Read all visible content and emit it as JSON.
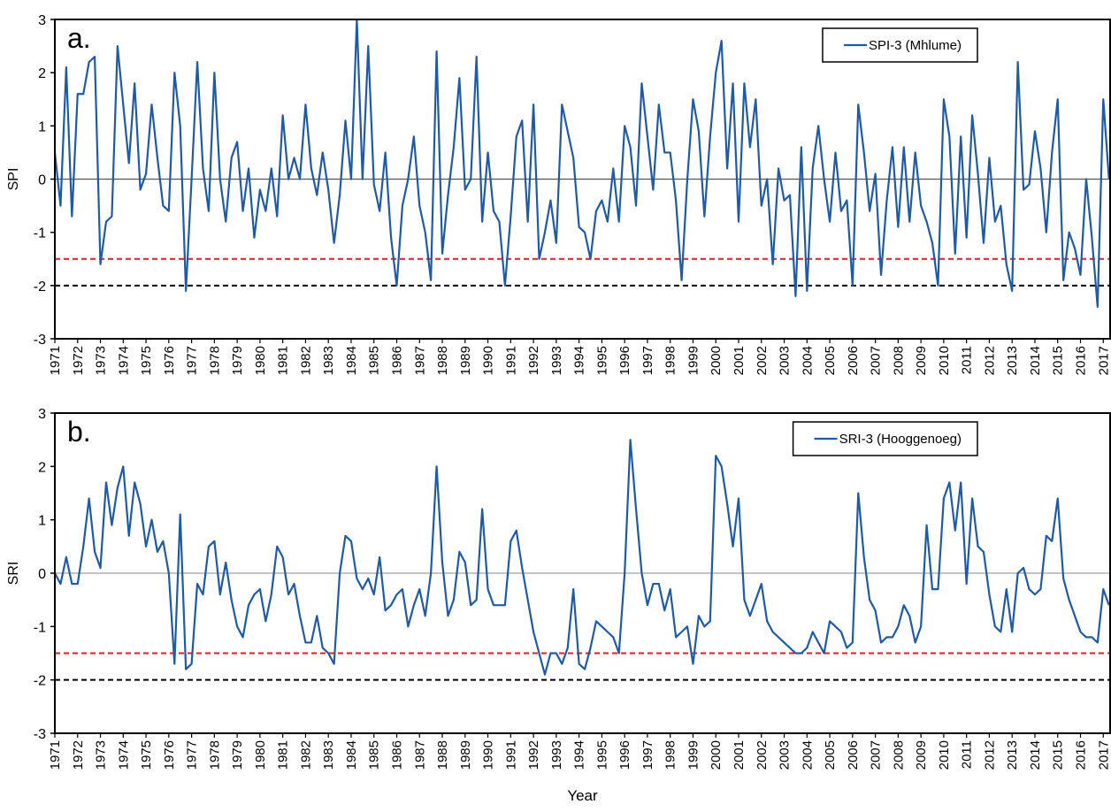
{
  "chart_data": [
    {
      "type": "line",
      "panel_label": "a.",
      "y_label": "SPI",
      "legend": "top-right",
      "grid": false,
      "xlim": [
        1971,
        2017.3
      ],
      "ylim": [
        -3,
        3
      ],
      "yticks": [
        -3,
        -2,
        -1,
        0,
        1,
        2,
        3
      ],
      "xticks": [
        1971,
        1972,
        1973,
        1974,
        1975,
        1976,
        1977,
        1978,
        1979,
        1980,
        1981,
        1982,
        1983,
        1984,
        1985,
        1986,
        1987,
        1988,
        1989,
        1990,
        1991,
        1992,
        1993,
        1994,
        1995,
        1996,
        1997,
        1998,
        1999,
        2000,
        2001,
        2002,
        2003,
        2004,
        2005,
        2006,
        2007,
        2008,
        2009,
        2010,
        2011,
        2012,
        2013,
        2014,
        2015,
        2016,
        2017
      ],
      "reference_lines": [
        {
          "value": 0,
          "color": "#555555",
          "dashed": false
        },
        {
          "value": -1.5,
          "color": "#e02020",
          "dashed": true
        },
        {
          "value": -2,
          "color": "#000000",
          "dashed": true
        }
      ],
      "x": [
        1971,
        1971.25,
        1971.5,
        1971.75,
        1972,
        1972.25,
        1972.5,
        1972.75,
        1973,
        1973.25,
        1973.5,
        1973.75,
        1974,
        1974.25,
        1974.5,
        1974.75,
        1975,
        1975.25,
        1975.5,
        1975.75,
        1976,
        1976.25,
        1976.5,
        1976.75,
        1977,
        1977.25,
        1977.5,
        1977.75,
        1978,
        1978.25,
        1978.5,
        1978.75,
        1979,
        1979.25,
        1979.5,
        1979.75,
        1980,
        1980.25,
        1980.5,
        1980.75,
        1981,
        1981.25,
        1981.5,
        1981.75,
        1982,
        1982.25,
        1982.5,
        1982.75,
        1983,
        1983.25,
        1983.5,
        1983.75,
        1984,
        1984.25,
        1984.5,
        1984.75,
        1985,
        1985.25,
        1985.5,
        1985.75,
        1986,
        1986.25,
        1986.5,
        1986.75,
        1987,
        1987.25,
        1987.5,
        1987.75,
        1988,
        1988.25,
        1988.5,
        1988.75,
        1989,
        1989.25,
        1989.5,
        1989.75,
        1990,
        1990.25,
        1990.5,
        1990.75,
        1991,
        1991.25,
        1991.5,
        1991.75,
        1992,
        1992.25,
        1992.5,
        1992.75,
        1993,
        1993.25,
        1993.5,
        1993.75,
        1994,
        1994.25,
        1994.5,
        1994.75,
        1995,
        1995.25,
        1995.5,
        1995.75,
        1996,
        1996.25,
        1996.5,
        1996.75,
        1997,
        1997.25,
        1997.5,
        1997.75,
        1998,
        1998.25,
        1998.5,
        1998.75,
        1999,
        1999.25,
        1999.5,
        1999.75,
        2000,
        2000.25,
        2000.5,
        2000.75,
        2001,
        2001.25,
        2001.5,
        2001.75,
        2002,
        2002.25,
        2002.5,
        2002.75,
        2003,
        2003.25,
        2003.5,
        2003.75,
        2004,
        2004.25,
        2004.5,
        2004.75,
        2005,
        2005.25,
        2005.5,
        2005.75,
        2006,
        2006.25,
        2006.5,
        2006.75,
        2007,
        2007.25,
        2007.5,
        2007.75,
        2008,
        2008.25,
        2008.5,
        2008.75,
        2009,
        2009.25,
        2009.5,
        2009.75,
        2010,
        2010.25,
        2010.5,
        2010.75,
        2011,
        2011.25,
        2011.5,
        2011.75,
        2012,
        2012.25,
        2012.5,
        2012.75,
        2013,
        2013.25,
        2013.5,
        2013.75,
        2014,
        2014.25,
        2014.5,
        2014.75,
        2015,
        2015.25,
        2015.5,
        2015.75,
        2016,
        2016.25,
        2016.5,
        2016.75,
        2017,
        2017.25
      ],
      "series": [
        {
          "name": "SPI-3 (Mhlume)",
          "color": "#1f5aa6",
          "values": [
            0.5,
            -0.5,
            2.1,
            -0.7,
            1.6,
            1.6,
            2.2,
            2.3,
            -1.6,
            -0.8,
            -0.7,
            2.5,
            1.4,
            0.3,
            1.8,
            -0.2,
            0.1,
            1.4,
            0.4,
            -0.5,
            -0.6,
            2.0,
            1.0,
            -2.1,
            0.0,
            2.2,
            0.2,
            -0.6,
            2.0,
            0.0,
            -0.8,
            0.4,
            0.7,
            -0.6,
            0.2,
            -1.1,
            -0.2,
            -0.6,
            0.2,
            -0.7,
            1.2,
            0.0,
            0.4,
            0.0,
            1.4,
            0.2,
            -0.3,
            0.5,
            -0.2,
            -1.2,
            -0.3,
            1.1,
            0.0,
            3.0,
            0.0,
            2.5,
            -0.1,
            -0.6,
            0.5,
            -1.1,
            -2.0,
            -0.5,
            0.0,
            0.8,
            -0.5,
            -1.0,
            -1.9,
            2.4,
            -1.4,
            -0.3,
            0.6,
            1.9,
            -0.2,
            0.0,
            2.3,
            -0.8,
            0.5,
            -0.6,
            -0.8,
            -2.0,
            -0.7,
            0.8,
            1.1,
            -0.8,
            1.4,
            -1.5,
            -1.0,
            -0.4,
            -1.2,
            1.4,
            0.9,
            0.4,
            -0.9,
            -1.0,
            -1.5,
            -0.6,
            -0.4,
            -0.8,
            0.2,
            -0.8,
            1.0,
            0.6,
            -0.5,
            1.8,
            0.8,
            -0.2,
            1.4,
            0.5,
            0.5,
            -0.4,
            -1.9,
            0.0,
            1.5,
            0.9,
            -0.7,
            0.8,
            2.0,
            2.6,
            0.2,
            1.8,
            -0.8,
            1.8,
            0.6,
            1.5,
            -0.5,
            0.0,
            -1.6,
            0.2,
            -0.4,
            -0.3,
            -2.2,
            0.6,
            -2.1,
            0.2,
            1.0,
            0.0,
            -0.8,
            0.5,
            -0.6,
            -0.4,
            -2.0,
            1.4,
            0.5,
            -0.6,
            0.1,
            -1.8,
            -0.4,
            0.6,
            -0.9,
            0.6,
            -0.8,
            0.5,
            -0.5,
            -0.8,
            -1.2,
            -2.0,
            1.5,
            0.8,
            -1.4,
            0.8,
            -1.1,
            1.2,
            0.1,
            -1.2,
            0.4,
            -0.8,
            -0.5,
            -1.6,
            -2.1,
            2.2,
            -0.2,
            -0.1,
            0.9,
            0.2,
            -1.0,
            0.5,
            1.5,
            -1.9,
            -1.0,
            -1.3,
            -1.8,
            0.0,
            -1.1,
            -2.4,
            1.5,
            0.0
          ]
        }
      ]
    },
    {
      "type": "line",
      "panel_label": "b.",
      "y_label": "SRI",
      "x_label": "Year",
      "legend": "top-right",
      "grid": false,
      "xlim": [
        1971,
        2017.3
      ],
      "ylim": [
        -3,
        3
      ],
      "yticks": [
        -3,
        -2,
        -1,
        0,
        1,
        2,
        3
      ],
      "xticks": [
        1971,
        1972,
        1973,
        1974,
        1975,
        1976,
        1977,
        1978,
        1979,
        1980,
        1981,
        1982,
        1983,
        1984,
        1985,
        1986,
        1987,
        1988,
        1989,
        1990,
        1991,
        1992,
        1993,
        1994,
        1995,
        1996,
        1997,
        1998,
        1999,
        2000,
        2001,
        2002,
        2003,
        2004,
        2005,
        2006,
        2007,
        2008,
        2009,
        2010,
        2011,
        2012,
        2013,
        2014,
        2015,
        2016,
        2017
      ],
      "reference_lines": [
        {
          "value": 0,
          "color": "#a0a0a0",
          "dashed": false
        },
        {
          "value": -1.5,
          "color": "#e02020",
          "dashed": true
        },
        {
          "value": -2,
          "color": "#000000",
          "dashed": true
        }
      ],
      "x": [
        1971,
        1971.25,
        1971.5,
        1971.75,
        1972,
        1972.25,
        1972.5,
        1972.75,
        1973,
        1973.25,
        1973.5,
        1973.75,
        1974,
        1974.25,
        1974.5,
        1974.75,
        1975,
        1975.25,
        1975.5,
        1975.75,
        1976,
        1976.25,
        1976.5,
        1976.75,
        1977,
        1977.25,
        1977.5,
        1977.75,
        1978,
        1978.25,
        1978.5,
        1978.75,
        1979,
        1979.25,
        1979.5,
        1979.75,
        1980,
        1980.25,
        1980.5,
        1980.75,
        1981,
        1981.25,
        1981.5,
        1981.75,
        1982,
        1982.25,
        1982.5,
        1982.75,
        1983,
        1983.25,
        1983.5,
        1983.75,
        1984,
        1984.25,
        1984.5,
        1984.75,
        1985,
        1985.25,
        1985.5,
        1985.75,
        1986,
        1986.25,
        1986.5,
        1986.75,
        1987,
        1987.25,
        1987.5,
        1987.75,
        1988,
        1988.25,
        1988.5,
        1988.75,
        1989,
        1989.25,
        1989.5,
        1989.75,
        1990,
        1990.25,
        1990.5,
        1990.75,
        1991,
        1991.25,
        1991.5,
        1991.75,
        1992,
        1992.25,
        1992.5,
        1992.75,
        1993,
        1993.25,
        1993.5,
        1993.75,
        1994,
        1994.25,
        1994.5,
        1994.75,
        1995,
        1995.25,
        1995.5,
        1995.75,
        1996,
        1996.25,
        1996.5,
        1996.75,
        1997,
        1997.25,
        1997.5,
        1997.75,
        1998,
        1998.25,
        1998.5,
        1998.75,
        1999,
        1999.25,
        1999.5,
        1999.75,
        2000,
        2000.25,
        2000.5,
        2000.75,
        2001,
        2001.25,
        2001.5,
        2001.75,
        2002,
        2002.25,
        2002.5,
        2002.75,
        2003,
        2003.25,
        2003.5,
        2003.75,
        2004,
        2004.25,
        2004.5,
        2004.75,
        2005,
        2005.25,
        2005.5,
        2005.75,
        2006,
        2006.25,
        2006.5,
        2006.75,
        2007,
        2007.25,
        2007.5,
        2007.75,
        2008,
        2008.25,
        2008.5,
        2008.75,
        2009,
        2009.25,
        2009.5,
        2009.75,
        2010,
        2010.25,
        2010.5,
        2010.75,
        2011,
        2011.25,
        2011.5,
        2011.75,
        2012,
        2012.25,
        2012.5,
        2012.75,
        2013,
        2013.25,
        2013.5,
        2013.75,
        2014,
        2014.25,
        2014.5,
        2014.75,
        2015,
        2015.25,
        2015.5,
        2015.75,
        2016,
        2016.25,
        2016.5,
        2016.75,
        2017,
        2017.25
      ],
      "series": [
        {
          "name": "SRI-3 (Hooggenoeg)",
          "color": "#1f5aa6",
          "values": [
            0.0,
            -0.2,
            0.3,
            -0.2,
            -0.2,
            0.5,
            1.4,
            0.4,
            0.1,
            1.7,
            0.9,
            1.6,
            2.0,
            0.7,
            1.7,
            1.3,
            0.5,
            1.0,
            0.4,
            0.6,
            0.0,
            -1.7,
            1.1,
            -1.8,
            -1.7,
            -0.2,
            -0.4,
            0.5,
            0.6,
            -0.4,
            0.2,
            -0.5,
            -1.0,
            -1.2,
            -0.6,
            -0.4,
            -0.3,
            -0.9,
            -0.4,
            0.5,
            0.3,
            -0.4,
            -0.2,
            -0.8,
            -1.3,
            -1.3,
            -0.8,
            -1.4,
            -1.5,
            -1.7,
            0.0,
            0.7,
            0.6,
            -0.1,
            -0.3,
            -0.1,
            -0.4,
            0.3,
            -0.7,
            -0.6,
            -0.4,
            -0.3,
            -1.0,
            -0.6,
            -0.3,
            -0.8,
            0.0,
            2.0,
            0.2,
            -0.8,
            -0.5,
            0.4,
            0.2,
            -0.6,
            -0.5,
            1.2,
            -0.3,
            -0.6,
            -0.6,
            -0.6,
            0.6,
            0.8,
            0.1,
            -0.5,
            -1.1,
            -1.5,
            -1.9,
            -1.5,
            -1.5,
            -1.7,
            -1.4,
            -0.3,
            -1.7,
            -1.8,
            -1.4,
            -0.9,
            -1.0,
            -1.1,
            -1.2,
            -1.5,
            0.0,
            2.5,
            1.2,
            0.0,
            -0.6,
            -0.2,
            -0.2,
            -0.7,
            -0.3,
            -1.2,
            -1.1,
            -1.0,
            -1.7,
            -0.8,
            -1.0,
            -0.9,
            2.2,
            2.0,
            1.3,
            0.5,
            1.4,
            -0.5,
            -0.8,
            -0.5,
            -0.2,
            -0.9,
            -1.1,
            -1.2,
            -1.3,
            -1.4,
            -1.5,
            -1.5,
            -1.4,
            -1.1,
            -1.3,
            -1.5,
            -0.9,
            -1.0,
            -1.1,
            -1.4,
            -1.3,
            1.5,
            0.3,
            -0.5,
            -0.7,
            -1.3,
            -1.2,
            -1.2,
            -1.0,
            -0.6,
            -0.8,
            -1.3,
            -1.0,
            0.9,
            -0.3,
            -0.3,
            1.4,
            1.7,
            0.8,
            1.7,
            -0.2,
            1.4,
            0.5,
            0.4,
            -0.4,
            -1.0,
            -1.1,
            -0.3,
            -1.1,
            0.0,
            0.1,
            -0.3,
            -0.4,
            -0.3,
            0.7,
            0.6,
            1.4,
            -0.1,
            -0.5,
            -0.8,
            -1.1,
            -1.2,
            -1.2,
            -1.3,
            -0.3,
            -0.6
          ]
        }
      ]
    }
  ]
}
